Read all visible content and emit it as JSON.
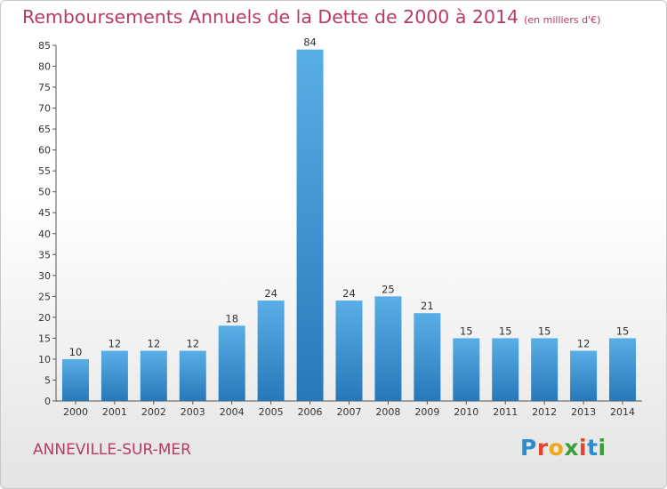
{
  "header": {
    "title": "Remboursements Annuels de la Dette de 2000 à 2014",
    "unit": "(en milliers d'€)"
  },
  "footer": {
    "city": "ANNEVILLE-SUR-MER",
    "brand_logo": "Proxiti"
  },
  "colors": {
    "title": "#b93a63",
    "bar_light": "#5aaee6",
    "bar_dark": "#2878b8"
  },
  "chart_data": {
    "type": "bar",
    "title": "Remboursements Annuels de la Dette de 2000 à 2014",
    "xlabel": "",
    "ylabel": "",
    "categories": [
      "2000",
      "2001",
      "2002",
      "2003",
      "2004",
      "2005",
      "2006",
      "2007",
      "2008",
      "2009",
      "2010",
      "2011",
      "2012",
      "2013",
      "2014"
    ],
    "values": [
      10,
      12,
      12,
      12,
      18,
      24,
      84,
      24,
      25,
      21,
      15,
      15,
      15,
      12,
      15
    ],
    "ylim": [
      0,
      85
    ],
    "yticks": [
      0,
      5,
      10,
      15,
      20,
      25,
      30,
      35,
      40,
      45,
      50,
      55,
      60,
      65,
      70,
      75,
      80,
      85
    ],
    "grid": false,
    "data_labels": true
  }
}
